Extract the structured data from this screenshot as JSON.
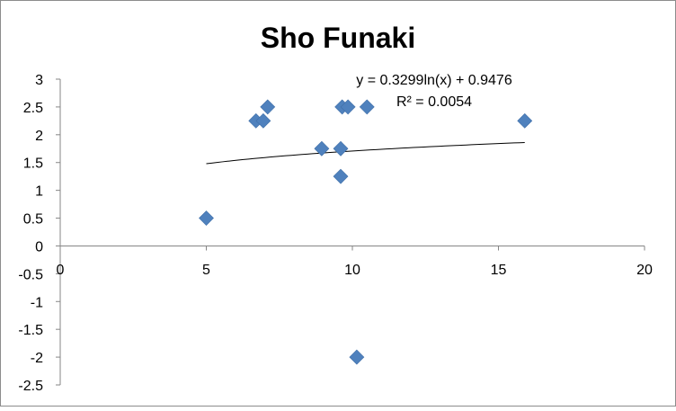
{
  "chart_data": {
    "type": "scatter",
    "title": "Sho Funaki",
    "xlabel": "",
    "ylabel": "",
    "xlim": [
      0,
      20
    ],
    "ylim": [
      -2.5,
      3
    ],
    "x_ticks": [
      "0",
      "5",
      "10",
      "15",
      "20"
    ],
    "y_ticks": [
      "3",
      "2.5",
      "2",
      "1.5",
      "1",
      "0.5",
      "0",
      "-0.5",
      "-1",
      "-1.5",
      "-2",
      "-2.5"
    ],
    "grid": false,
    "legend": "none",
    "series": [
      {
        "marker": "diamond",
        "color": "#4f81bd",
        "points": [
          {
            "x": 5.0,
            "y": 0.5
          },
          {
            "x": 6.7,
            "y": 2.25
          },
          {
            "x": 6.95,
            "y": 2.25
          },
          {
            "x": 7.1,
            "y": 2.5
          },
          {
            "x": 8.95,
            "y": 1.75
          },
          {
            "x": 9.6,
            "y": 1.75
          },
          {
            "x": 9.6,
            "y": 1.25
          },
          {
            "x": 9.65,
            "y": 2.5
          },
          {
            "x": 9.85,
            "y": 2.5
          },
          {
            "x": 10.15,
            "y": -2.0
          },
          {
            "x": 10.5,
            "y": 2.5
          },
          {
            "x": 15.9,
            "y": 2.25
          }
        ]
      }
    ],
    "trendline": {
      "type": "logarithmic",
      "a": 0.3299,
      "b": 0.9476,
      "x_range": [
        5.0,
        15.9
      ],
      "color": "#000000",
      "equation_label": "y = 0.3299ln(x) + 0.9476",
      "r2_label": "R² = 0.0054"
    }
  }
}
